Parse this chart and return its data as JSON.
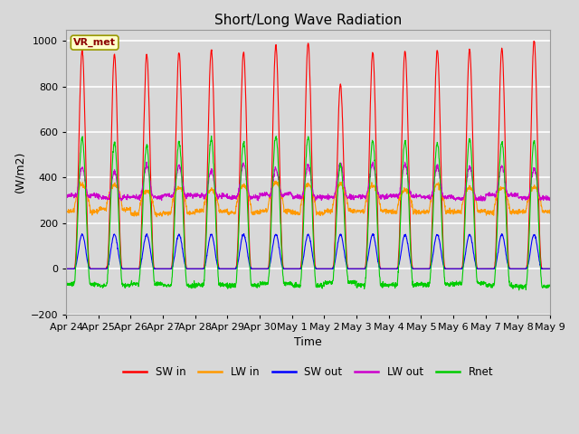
{
  "title": "Short/Long Wave Radiation",
  "xlabel": "Time",
  "ylabel": "(W/m2)",
  "ylim": [
    -200,
    1050
  ],
  "yticks": [
    -200,
    0,
    200,
    400,
    600,
    800,
    1000
  ],
  "station_label": "VR_met",
  "fig_bg_color": "#d8d8d8",
  "plot_bg_color": "#d8d8d8",
  "grid_color": "#ffffff",
  "colors": {
    "SW_in": "#ff0000",
    "LW_in": "#ff9900",
    "SW_out": "#0000ff",
    "LW_out": "#cc00cc",
    "Rnet": "#00cc00"
  },
  "x_tick_labels": [
    "Apr 24",
    "Apr 25",
    "Apr 26",
    "Apr 27",
    "Apr 28",
    "Apr 29",
    "Apr 30",
    "May 1",
    "May 2",
    "May 3",
    "May 4",
    "May 5",
    "May 6",
    "May 7",
    "May 8",
    "May 9"
  ],
  "n_days": 15,
  "pts_per_day": 144
}
